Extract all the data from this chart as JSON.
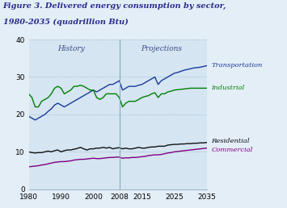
{
  "title_line1": "Figure 3. Delivered energy consumption by sector,",
  "title_line2": "1980-2035 (quadrillion Btu)",
  "title_color": "#2B2B8C",
  "bg_color": "#E4EEF7",
  "plot_bg_color": "#D5E5F2",
  "history_label": "History",
  "projections_label": "Projections",
  "divider_year": 2008,
  "xlim": [
    1980,
    2035
  ],
  "ylim": [
    0,
    40
  ],
  "yticks": [
    0,
    10,
    20,
    30,
    40
  ],
  "xticks": [
    1980,
    1990,
    2000,
    2008,
    2015,
    2025,
    2035
  ],
  "xtick_labels": [
    "1980",
    "1990",
    "2000",
    "2008",
    "2015",
    "2025",
    "2035"
  ],
  "transportation": {
    "color": "#1A3A99",
    "label": "Transportation",
    "years": [
      1980,
      1981,
      1982,
      1983,
      1984,
      1985,
      1986,
      1987,
      1988,
      1989,
      1990,
      1991,
      1992,
      1993,
      1994,
      1995,
      1996,
      1997,
      1998,
      1999,
      2000,
      2001,
      2002,
      2003,
      2004,
      2005,
      2006,
      2007,
      2008,
      2009,
      2010,
      2011,
      2012,
      2013,
      2014,
      2015,
      2016,
      2017,
      2018,
      2019,
      2020,
      2021,
      2022,
      2023,
      2024,
      2025,
      2026,
      2027,
      2028,
      2029,
      2030,
      2031,
      2032,
      2033,
      2034,
      2035
    ],
    "values": [
      19.5,
      19.0,
      18.5,
      19.0,
      19.5,
      20.0,
      20.8,
      21.5,
      22.5,
      23.0,
      22.5,
      22.0,
      22.5,
      23.0,
      23.5,
      24.0,
      24.5,
      25.0,
      25.5,
      26.0,
      26.5,
      26.0,
      26.5,
      27.0,
      27.5,
      28.0,
      28.0,
      28.5,
      29.0,
      26.5,
      27.0,
      27.5,
      27.5,
      27.5,
      27.8,
      28.0,
      28.5,
      29.0,
      29.5,
      30.0,
      28.0,
      29.0,
      29.5,
      30.0,
      30.5,
      31.0,
      31.2,
      31.5,
      31.8,
      32.0,
      32.2,
      32.4,
      32.5,
      32.6,
      32.8,
      33.0
    ]
  },
  "industrial": {
    "color": "#008000",
    "label": "Industrial",
    "years": [
      1980,
      1981,
      1982,
      1983,
      1984,
      1985,
      1986,
      1987,
      1988,
      1989,
      1990,
      1991,
      1992,
      1993,
      1994,
      1995,
      1996,
      1997,
      1998,
      1999,
      2000,
      2001,
      2002,
      2003,
      2004,
      2005,
      2006,
      2007,
      2008,
      2009,
      2010,
      2011,
      2012,
      2013,
      2014,
      2015,
      2016,
      2017,
      2018,
      2019,
      2020,
      2021,
      2022,
      2023,
      2024,
      2025,
      2026,
      2027,
      2028,
      2029,
      2030,
      2031,
      2032,
      2033,
      2034,
      2035
    ],
    "values": [
      25.5,
      24.5,
      22.0,
      22.0,
      23.5,
      24.0,
      24.5,
      25.5,
      27.0,
      27.5,
      27.0,
      25.5,
      26.0,
      26.5,
      27.5,
      27.5,
      27.8,
      27.5,
      27.0,
      26.5,
      26.5,
      24.5,
      24.0,
      24.5,
      25.5,
      25.5,
      25.5,
      25.5,
      24.5,
      22.0,
      23.0,
      23.5,
      23.5,
      23.5,
      24.0,
      24.5,
      24.8,
      25.0,
      25.5,
      25.8,
      24.5,
      25.5,
      25.5,
      26.0,
      26.2,
      26.5,
      26.6,
      26.7,
      26.8,
      26.9,
      27.0,
      27.0,
      27.0,
      27.0,
      27.0,
      27.0
    ]
  },
  "residential": {
    "color": "#111111",
    "label": "Residential",
    "years": [
      1980,
      1981,
      1982,
      1983,
      1984,
      1985,
      1986,
      1987,
      1988,
      1989,
      1990,
      1991,
      1992,
      1993,
      1994,
      1995,
      1996,
      1997,
      1998,
      1999,
      2000,
      2001,
      2002,
      2003,
      2004,
      2005,
      2006,
      2007,
      2008,
      2009,
      2010,
      2011,
      2012,
      2013,
      2014,
      2015,
      2016,
      2017,
      2018,
      2019,
      2020,
      2021,
      2022,
      2023,
      2024,
      2025,
      2026,
      2027,
      2028,
      2029,
      2030,
      2031,
      2032,
      2033,
      2034,
      2035
    ],
    "values": [
      10.0,
      9.8,
      9.7,
      9.8,
      9.8,
      10.0,
      10.2,
      10.0,
      10.3,
      10.5,
      10.0,
      10.3,
      10.5,
      10.5,
      10.7,
      10.9,
      11.2,
      10.8,
      10.5,
      10.8,
      10.8,
      11.0,
      11.0,
      11.2,
      11.0,
      11.2,
      10.8,
      11.0,
      11.1,
      10.8,
      11.0,
      10.8,
      10.8,
      11.0,
      11.2,
      11.0,
      11.0,
      11.2,
      11.3,
      11.3,
      11.5,
      11.5,
      11.5,
      11.8,
      11.9,
      12.0,
      12.0,
      12.1,
      12.1,
      12.2,
      12.2,
      12.3,
      12.3,
      12.4,
      12.4,
      12.5
    ]
  },
  "commercial": {
    "color": "#800080",
    "label": "Commercial",
    "years": [
      1980,
      1981,
      1982,
      1983,
      1984,
      1985,
      1986,
      1987,
      1988,
      1989,
      1990,
      1991,
      1992,
      1993,
      1994,
      1995,
      1996,
      1997,
      1998,
      1999,
      2000,
      2001,
      2002,
      2003,
      2004,
      2005,
      2006,
      2007,
      2008,
      2009,
      2010,
      2011,
      2012,
      2013,
      2014,
      2015,
      2016,
      2017,
      2018,
      2019,
      2020,
      2021,
      2022,
      2023,
      2024,
      2025,
      2026,
      2027,
      2028,
      2029,
      2030,
      2031,
      2032,
      2033,
      2034,
      2035
    ],
    "values": [
      6.0,
      6.1,
      6.2,
      6.3,
      6.5,
      6.6,
      6.8,
      7.0,
      7.2,
      7.3,
      7.4,
      7.4,
      7.5,
      7.6,
      7.8,
      7.9,
      8.0,
      8.0,
      8.1,
      8.2,
      8.3,
      8.2,
      8.2,
      8.3,
      8.4,
      8.5,
      8.5,
      8.6,
      8.6,
      8.3,
      8.4,
      8.4,
      8.5,
      8.5,
      8.6,
      8.7,
      8.8,
      9.0,
      9.1,
      9.2,
      9.2,
      9.3,
      9.5,
      9.7,
      9.8,
      10.0,
      10.1,
      10.2,
      10.3,
      10.4,
      10.5,
      10.6,
      10.7,
      10.8,
      10.9,
      11.0
    ]
  }
}
